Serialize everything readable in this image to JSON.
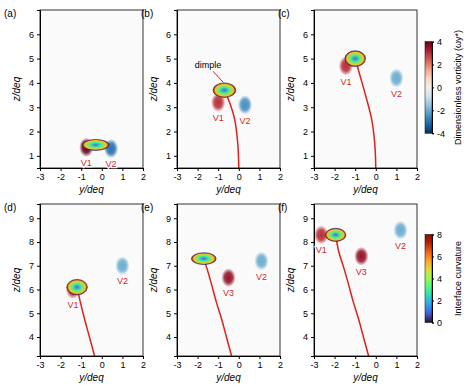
{
  "chart_data": [
    {
      "type": "field",
      "title": "(a)",
      "x_label": "y/deq",
      "y_label": "z/deq",
      "xlim": [
        -3,
        2
      ],
      "xticks": [
        -3,
        -2,
        -1,
        0,
        1,
        2
      ],
      "ylim": [
        0.5,
        7
      ],
      "yticks": [
        1,
        2,
        3,
        4,
        5,
        6
      ],
      "bubble": {
        "y": -0.3,
        "z": 1.45,
        "width": 1.3,
        "height": 0.45,
        "curvature": [
          1,
          8
        ]
      },
      "vortices": [
        {
          "label": "V1",
          "y": -0.75,
          "z": 1.35,
          "vorticity": 4
        },
        {
          "label": "V2",
          "y": 0.45,
          "z": 1.3,
          "vorticity": -3
        }
      ],
      "trajectory": {
        "y": [],
        "z": []
      },
      "annotations": []
    },
    {
      "type": "field",
      "title": "(b)",
      "x_label": "y/deq",
      "y_label": "z/deq",
      "xlim": [
        -3,
        2
      ],
      "xticks": [
        -3,
        -2,
        -1,
        0,
        1,
        2
      ],
      "ylim": [
        0.5,
        7
      ],
      "yticks": [
        1,
        2,
        3,
        4,
        5,
        6
      ],
      "bubble": {
        "y": -0.7,
        "z": 3.7,
        "width": 1.1,
        "height": 0.6,
        "curvature": [
          1,
          8
        ]
      },
      "vortices": [
        {
          "label": "V1",
          "y": -1.0,
          "z": 3.2,
          "vorticity": 3
        },
        {
          "label": "V2",
          "y": 0.3,
          "z": 3.1,
          "vorticity": -2.5
        }
      ],
      "trajectory": {
        "y": [
          0.0,
          -0.05,
          -0.2,
          -0.45,
          -0.7
        ],
        "z": [
          0.5,
          1.5,
          2.5,
          3.2,
          3.7
        ]
      },
      "annotations": [
        {
          "text": "dimple",
          "y": -1.5,
          "z": 4.6,
          "arrow_y": -0.75,
          "arrow_z": 4.02
        }
      ]
    },
    {
      "type": "field",
      "title": "(c)",
      "x_label": "y/deq",
      "y_label": "z/deq",
      "xlim": [
        -3,
        2
      ],
      "xticks": [
        -3,
        -2,
        -1,
        0,
        1,
        2
      ],
      "ylim": [
        0.5,
        7
      ],
      "yticks": [
        1,
        2,
        3,
        4,
        5,
        6
      ],
      "bubble": {
        "y": -1.0,
        "z": 5.0,
        "width": 1.0,
        "height": 0.65,
        "curvature": [
          1,
          8
        ]
      },
      "vortices": [
        {
          "label": "V1",
          "y": -1.45,
          "z": 4.7,
          "vorticity": 3
        },
        {
          "label": "V2",
          "y": 1.0,
          "z": 4.2,
          "vorticity": -2
        }
      ],
      "trajectory": {
        "y": [
          0.0,
          -0.05,
          -0.2,
          -0.5,
          -0.8,
          -1.0
        ],
        "z": [
          0.5,
          1.5,
          2.5,
          3.5,
          4.4,
          5.0
        ]
      },
      "annotations": [],
      "vorticity_colorbar": {
        "title": "Dimensionless vorticity (ωy*)",
        "range": [
          -4,
          4
        ],
        "ticks": [
          -4,
          -2,
          0,
          2,
          4
        ]
      }
    },
    {
      "type": "field",
      "title": "(d)",
      "x_label": "y/deq",
      "y_label": "z/deq",
      "xlim": [
        -3,
        2
      ],
      "xticks": [
        -3,
        -2,
        -1,
        0,
        1,
        2
      ],
      "ylim": [
        3.2,
        9.6
      ],
      "yticks": [
        4,
        5,
        6,
        7,
        8,
        9
      ],
      "bubble": {
        "y": -1.2,
        "z": 6.1,
        "width": 1.0,
        "height": 0.65,
        "curvature": [
          1,
          8
        ]
      },
      "vortices": [
        {
          "label": "V1",
          "y": -1.4,
          "z": 6.0,
          "vorticity": 3
        },
        {
          "label": "V2",
          "y": 1.0,
          "z": 7.0,
          "vorticity": -2
        }
      ],
      "trajectory": {
        "y": [
          -0.35,
          -0.6,
          -0.85,
          -1.05,
          -1.2
        ],
        "z": [
          3.2,
          4.0,
          4.8,
          5.5,
          6.1
        ]
      },
      "annotations": []
    },
    {
      "type": "field",
      "title": "(e)",
      "x_label": "y/deq",
      "y_label": "z/deq",
      "xlim": [
        -3,
        2
      ],
      "xticks": [
        -3,
        -2,
        -1,
        0,
        1,
        2
      ],
      "ylim": [
        3.2,
        9.6
      ],
      "yticks": [
        4,
        5,
        6,
        7,
        8,
        9
      ],
      "bubble": {
        "y": -1.7,
        "z": 7.3,
        "width": 1.2,
        "height": 0.5,
        "curvature": [
          1,
          8
        ]
      },
      "vortices": [
        {
          "label": "V3",
          "y": -0.5,
          "z": 6.5,
          "vorticity": 3.5
        },
        {
          "label": "V2",
          "y": 1.1,
          "z": 7.2,
          "vorticity": -2
        }
      ],
      "trajectory": {
        "y": [
          -0.35,
          -0.6,
          -0.85,
          -1.1,
          -1.35,
          -1.55,
          -1.7
        ],
        "z": [
          3.2,
          4.0,
          4.8,
          5.5,
          6.3,
          6.9,
          7.3
        ]
      },
      "annotations": []
    },
    {
      "type": "field",
      "title": "(f)",
      "x_label": "y/deq",
      "y_label": "z/deq",
      "xlim": [
        -3,
        2
      ],
      "xticks": [
        -3,
        -2,
        -1,
        0,
        1,
        2
      ],
      "ylim": [
        3.2,
        9.6
      ],
      "yticks": [
        4,
        5,
        6,
        7,
        8,
        9
      ],
      "bubble": {
        "y": -1.95,
        "z": 8.3,
        "width": 1.0,
        "height": 0.55,
        "curvature": [
          1,
          8
        ]
      },
      "vortices": [
        {
          "label": "V1",
          "y": -2.65,
          "z": 8.3,
          "vorticity": 3
        },
        {
          "label": "V3",
          "y": -0.7,
          "z": 7.4,
          "vorticity": 3.5
        },
        {
          "label": "V2",
          "y": 1.2,
          "z": 8.5,
          "vorticity": -2
        }
      ],
      "trajectory": {
        "y": [
          -0.35,
          -0.6,
          -0.85,
          -1.1,
          -1.35,
          -1.55,
          -1.8,
          -1.95
        ],
        "z": [
          3.2,
          4.0,
          4.8,
          5.5,
          6.3,
          6.9,
          7.6,
          8.3
        ]
      },
      "annotations": [],
      "curvature_colorbar": {
        "title": "Interface curvature",
        "range": [
          0,
          8
        ],
        "ticks": [
          0,
          2,
          4,
          6,
          8
        ]
      }
    }
  ]
}
